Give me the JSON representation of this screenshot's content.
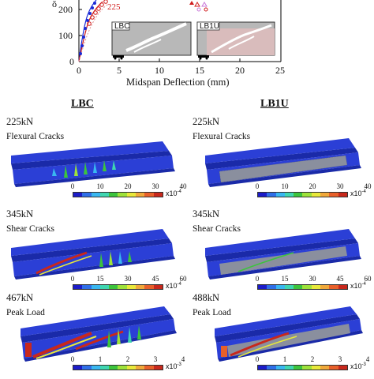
{
  "top_plot": {
    "y_ticks": [
      "0",
      "100",
      "200"
    ],
    "y_axis_fragment": "ŏ",
    "x_ticks": [
      "0",
      "5",
      "10",
      "15",
      "20",
      "25"
    ],
    "xlabel": "Midspan Deflection (mm)",
    "marker_label": "225",
    "insets": [
      {
        "label": "LBC"
      },
      {
        "label": "LB1U"
      }
    ]
  },
  "columns": [
    {
      "header": "LBC",
      "panels": [
        {
          "load": "225kN",
          "description": "Flexural Cracks",
          "scale_ticks": [
            "0",
            "10",
            "20",
            "30",
            "40"
          ],
          "unit_base": "x10",
          "unit_exp": "-4"
        },
        {
          "load": "345kN",
          "description": "Shear Cracks",
          "scale_ticks": [
            "0",
            "15",
            "30",
            "45",
            "60"
          ],
          "unit_base": "x10",
          "unit_exp": "-4"
        },
        {
          "load": "467kN",
          "description": "Peak Load",
          "scale_ticks": [
            "0",
            "1",
            "2",
            "3",
            "4"
          ],
          "unit_base": "x10",
          "unit_exp": "-3"
        }
      ]
    },
    {
      "header": "LB1U",
      "panels": [
        {
          "load": "225kN",
          "description": "Flexural Cracks",
          "scale_ticks": [
            "0",
            "10",
            "20",
            "30",
            "40"
          ],
          "unit_base": "x10",
          "unit_exp": "-4"
        },
        {
          "load": "345kN",
          "description": "Shear Cracks",
          "scale_ticks": [
            "0",
            "15",
            "30",
            "45",
            "60"
          ],
          "unit_base": "x10",
          "unit_exp": "-4"
        },
        {
          "load": "488kN",
          "description": "Peak Load",
          "scale_ticks": [
            "0",
            "1",
            "2",
            "3",
            "4"
          ],
          "unit_base": "x10",
          "unit_exp": "-3"
        }
      ]
    }
  ],
  "colors": {
    "beam_blue": "#2b3fd6",
    "beam_dark": "#1a2aa8",
    "fiber_gray": "#8a8f9e",
    "scale": [
      "#1c1cc8",
      "#2f6fe8",
      "#39b7f0",
      "#3fd6b0",
      "#3cc43c",
      "#9ee23a",
      "#e8e83a",
      "#f0a83a",
      "#e8602a",
      "#c8281c"
    ]
  }
}
